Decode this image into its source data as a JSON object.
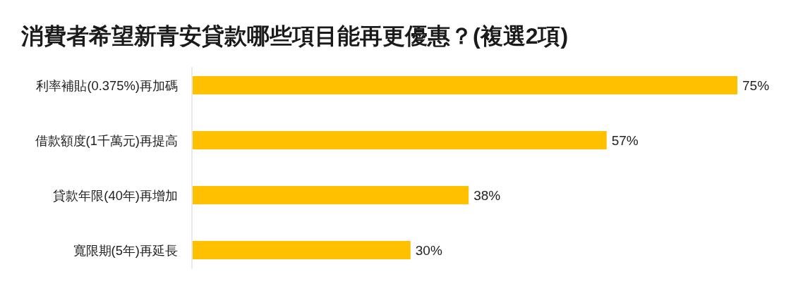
{
  "chart_data": {
    "type": "bar",
    "orientation": "horizontal",
    "title": "消費者希望新青安貸款哪些項目能再更優惠？(複選2項)",
    "categories": [
      "利率補貼(0.375%)再加碼",
      "借款額度(1千萬元)再提高",
      "貸款年限(40年)再增加",
      "寬限期(5年)再延長"
    ],
    "values": [
      75,
      57,
      38,
      30
    ],
    "value_labels": [
      "75%",
      "57%",
      "38%",
      "30%"
    ],
    "color": "#ffc000"
  }
}
